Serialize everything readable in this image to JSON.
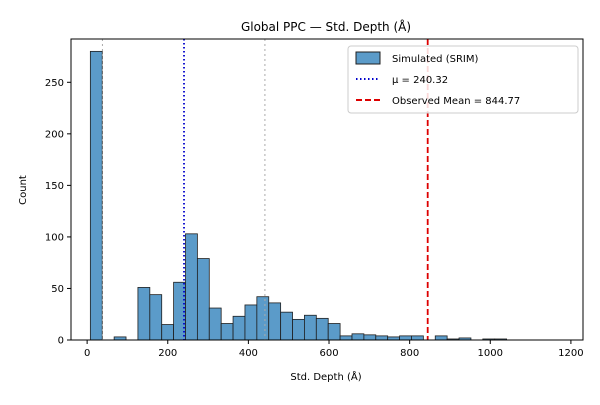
{
  "chart_data": {
    "type": "histogram",
    "title": "Global PPC — Std. Depth (Å)",
    "xlabel": "Std. Depth (Å)",
    "ylabel": "Count",
    "xlim": [
      -40,
      1230
    ],
    "ylim": [
      0,
      292
    ],
    "xticks": [
      0,
      200,
      400,
      600,
      800,
      1000,
      1200
    ],
    "yticks": [
      0,
      50,
      100,
      150,
      200,
      250
    ],
    "grid": false,
    "legend_position": "upper right",
    "colors": {
      "bars_fill": "#5b9bc9",
      "bars_edge": "#1f1f1f",
      "mean_line": "#0000cc",
      "observed_line": "#dd0000",
      "quantile_lines": "#aaaaaa"
    },
    "series": [
      {
        "name": "Simulated (SRIM)",
        "kind": "histogram",
        "bin_start": 8,
        "bin_width": 29.5,
        "counts": [
          280,
          0,
          3,
          0,
          51,
          44,
          15,
          56,
          103,
          79,
          31,
          16,
          23,
          34,
          42,
          36,
          27,
          20,
          24,
          21,
          16,
          4,
          6,
          5,
          4,
          3,
          4,
          4,
          0,
          4,
          1,
          2,
          0,
          1,
          1,
          0,
          0,
          0,
          0,
          0,
          0,
          0,
          0,
          0,
          0,
          0,
          0,
          0,
          0,
          0,
          0,
          0,
          0,
          1
        ]
      }
    ],
    "reference_lines": [
      {
        "name": "μ = 240.32",
        "x": 240.32,
        "style": "dotted",
        "color": "#0000cc"
      },
      {
        "name": "Observed Mean = 844.77",
        "x": 844.77,
        "style": "dashed",
        "color": "#dd0000"
      }
    ],
    "quantile_lines": [
      38,
      441
    ],
    "legend": [
      "Simulated (SRIM)",
      "μ = 240.32",
      "Observed Mean = 844.77"
    ]
  }
}
